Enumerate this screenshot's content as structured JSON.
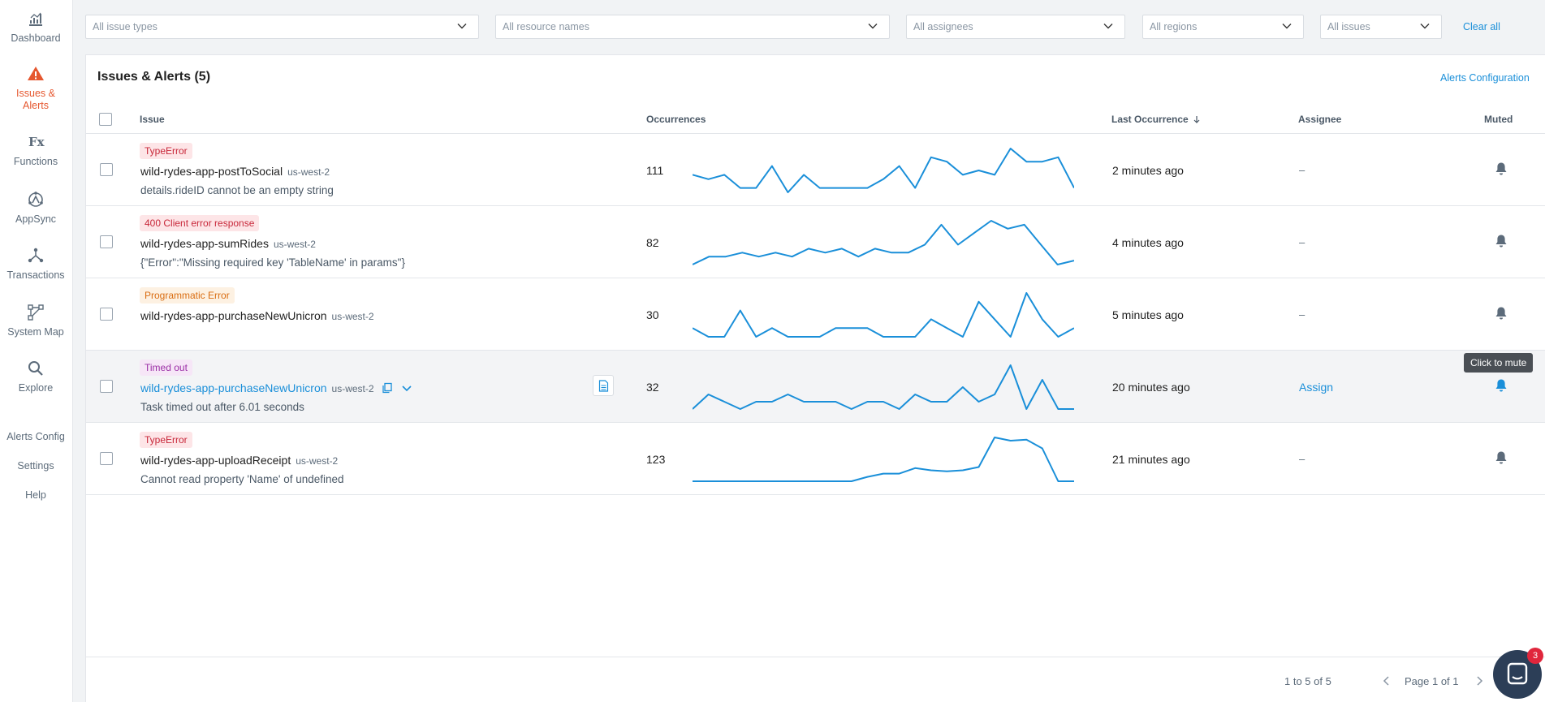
{
  "sidebar": {
    "items": [
      {
        "label": "Dashboard",
        "icon": "dashboard-icon"
      },
      {
        "label": "Issues & Alerts",
        "icon": "warning-icon",
        "active": true
      },
      {
        "label": "Functions",
        "icon": "fx-icon"
      },
      {
        "label": "AppSync",
        "icon": "appsync-icon"
      },
      {
        "label": "Transactions",
        "icon": "transactions-icon"
      },
      {
        "label": "System Map",
        "icon": "system-map-icon"
      },
      {
        "label": "Explore",
        "icon": "search-icon"
      }
    ],
    "links": [
      "Alerts Config",
      "Settings",
      "Help"
    ]
  },
  "filters": {
    "issue_types": "All issue types",
    "resource_names": "All resource names",
    "assignees": "All assignees",
    "regions": "All regions",
    "issues": "All issues",
    "clear_all": "Clear all"
  },
  "panel": {
    "title": "Issues & Alerts (5)",
    "alerts_config": "Alerts Configuration"
  },
  "columns": {
    "issue": "Issue",
    "occurrences": "Occurrences",
    "last_occurrence": "Last Occurrence",
    "assignee": "Assignee",
    "muted": "Muted"
  },
  "rows": [
    {
      "badge": "TypeError",
      "badge_color": "#c8283a",
      "name": "wild-rydes-app-postToSocial",
      "region": "us-west-2",
      "message": "details.rideID cannot be an empty string",
      "occurrences": "111",
      "spark": [
        2,
        3,
        2,
        5,
        5,
        0,
        6,
        2,
        5,
        5,
        5,
        5,
        3,
        0,
        5,
        -2,
        -1,
        2,
        1,
        2,
        -4,
        -1,
        -1,
        -2,
        5
      ],
      "last": "2 minutes ago",
      "assignee": "–"
    },
    {
      "badge": "400 Client error response",
      "badge_color": "#c8283a",
      "name": "wild-rydes-app-sumRides",
      "region": "us-west-2",
      "message": "{\"Error\":\"Missing required key 'TableName' in params\"}",
      "occurrences": "82",
      "spark": [
        8,
        6,
        6,
        5,
        6,
        5,
        6,
        4,
        5,
        4,
        6,
        4,
        5,
        5,
        3,
        -2,
        3,
        0,
        -3,
        -1,
        -2,
        3,
        8,
        7
      ],
      "last": "4 minutes ago",
      "assignee": "–"
    },
    {
      "badge": "Programmatic Error",
      "badge_color": "#d96d12",
      "name": "wild-rydes-app-purchaseNewUnicron",
      "region": "us-west-2",
      "message": "",
      "occurrences": "30",
      "spark": [
        4,
        5,
        5,
        2,
        5,
        4,
        5,
        5,
        5,
        4,
        4,
        4,
        5,
        5,
        5,
        3,
        4,
        5,
        1,
        3,
        5,
        0,
        3,
        5,
        4
      ],
      "last": "5 minutes ago",
      "assignee": "–"
    },
    {
      "badge": "Timed out",
      "badge_color": "#9b2fa6",
      "name": "wild-rydes-app-purchaseNewUnicron",
      "region": "us-west-2",
      "message": "Task timed out after 6.01 seconds",
      "occurrences": "32",
      "spark": [
        7,
        5,
        6,
        7,
        6,
        6,
        5,
        6,
        6,
        6,
        7,
        6,
        6,
        7,
        5,
        6,
        6,
        4,
        6,
        5,
        1,
        7,
        3,
        7,
        7
      ],
      "last": "20 minutes ago",
      "assignee": "Assign",
      "tooltip": "Click to mute"
    },
    {
      "badge": "TypeError",
      "badge_color": "#c8283a",
      "name": "wild-rydes-app-uploadReceipt",
      "region": "us-west-2",
      "message": "Cannot read property 'Name' of undefined",
      "occurrences": "123",
      "spark": [
        9,
        9,
        9,
        9,
        9,
        9,
        9,
        9,
        9,
        9,
        9,
        8.6,
        8.3,
        8.3,
        7.8,
        8,
        8.1,
        8,
        7.7,
        5,
        5.3,
        5.2,
        6,
        9,
        9
      ],
      "last": "21 minutes ago",
      "assignee": "–"
    }
  ],
  "footer": {
    "range": "1 to 5 of 5",
    "page": "Page 1 of 1"
  },
  "chat": {
    "badge": "3"
  },
  "colors": {
    "accent": "#1a8fd9",
    "active": "#e5572f",
    "spark": "#1a8fd9"
  }
}
